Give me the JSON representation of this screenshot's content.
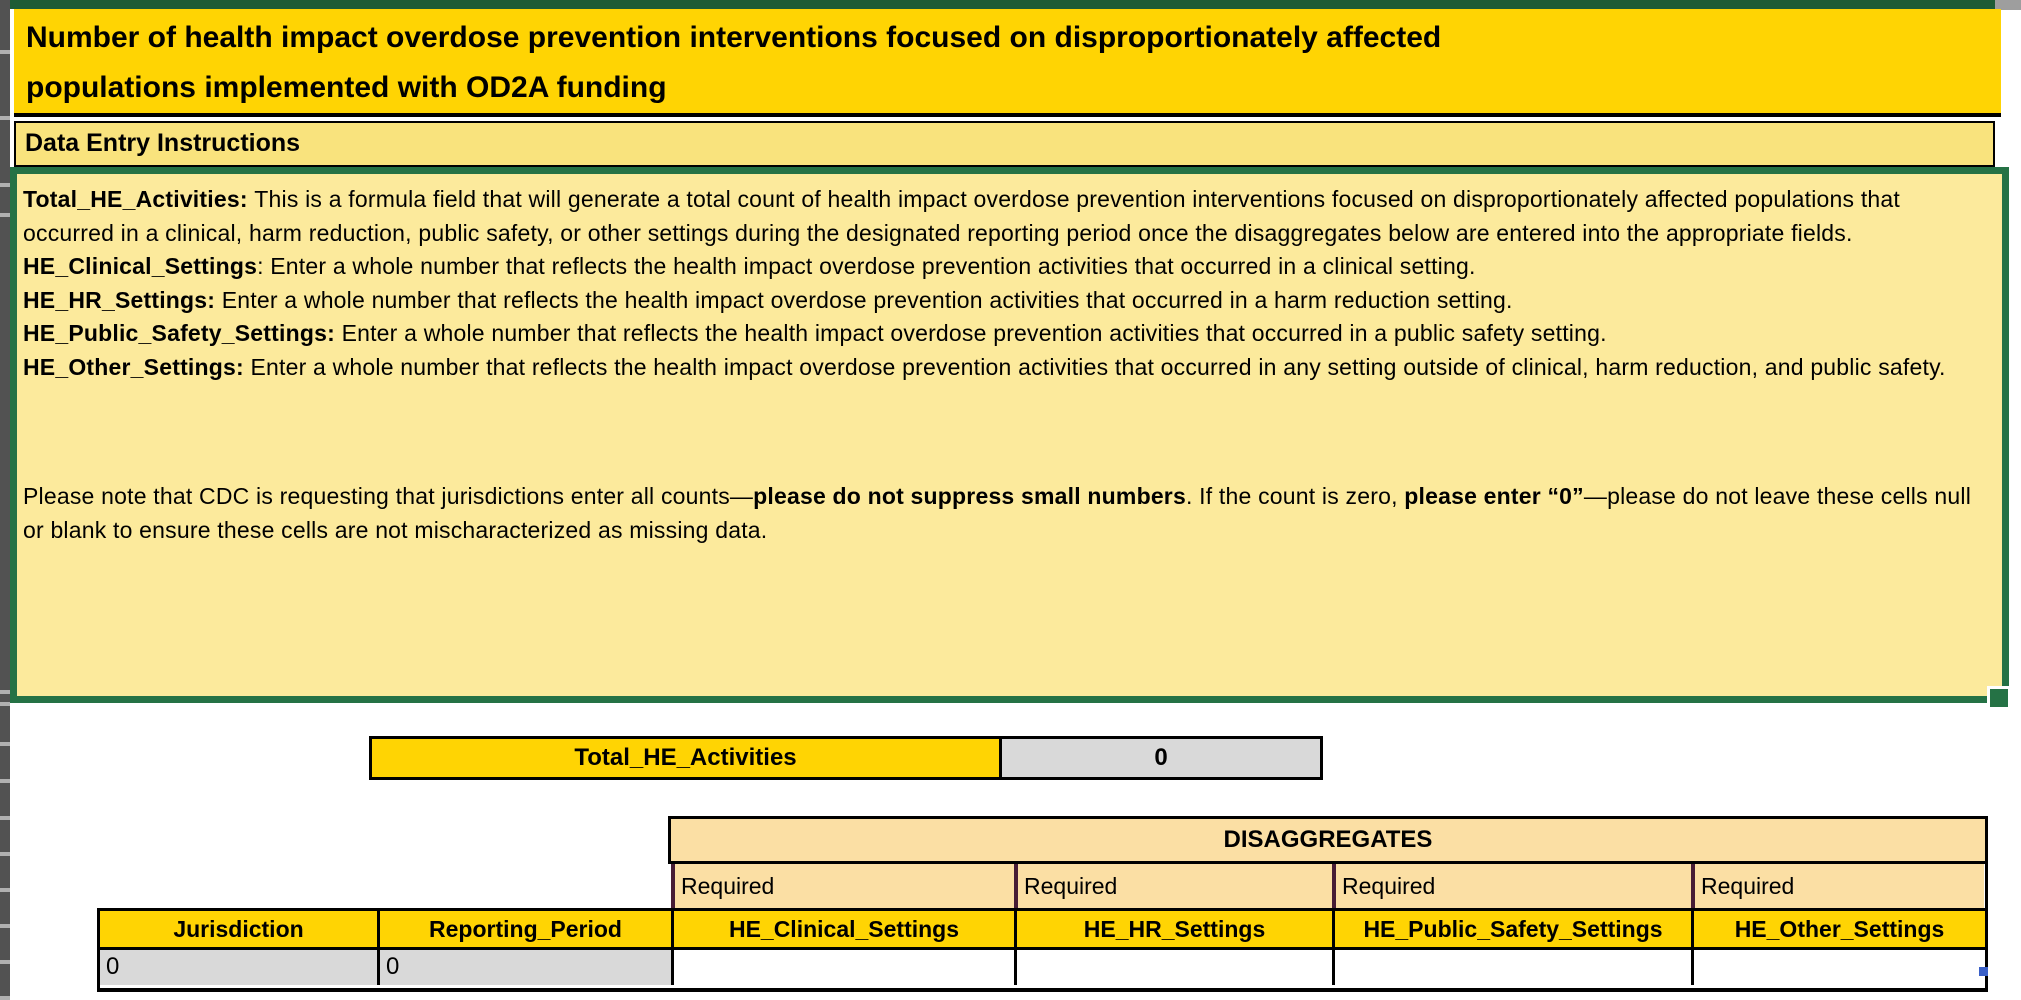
{
  "title": {
    "line1": "Number of health impact overdose prevention interventions focused on disproportionately affected",
    "line2": "populations implemented with OD2A funding"
  },
  "instructions_header": "Data Entry Instructions",
  "instructions": {
    "paragraphs": [
      {
        "segments": [
          {
            "t": "Total_HE_Activities: ",
            "b": true
          },
          {
            "t": "This is a formula field that will generate a total count of health impact overdose prevention interventions focused on disproportionately affected populations that occurred in a clinical, harm reduction, public safety, or other settings during the designated reporting period once the disaggregates below are entered into the appropriate fields.",
            "b": false
          }
        ]
      },
      {
        "segments": [
          {
            "t": "HE_Clinical_Settings",
            "b": true
          },
          {
            "t": ": Enter a whole number that reflects the health impact overdose prevention activities that occurred in a clinical setting.",
            "b": false
          }
        ]
      },
      {
        "segments": [
          {
            "t": "HE_HR_Settings: ",
            "b": true
          },
          {
            "t": "Enter a whole number that reflects the health impact overdose prevention activities that occurred in a harm reduction setting.",
            "b": false
          }
        ]
      },
      {
        "segments": [
          {
            "t": "HE_Public_Safety_Settings: ",
            "b": true
          },
          {
            "t": "Enter a whole number that reflects the health impact overdose prevention activities that occurred in a public safety setting.",
            "b": false
          }
        ]
      },
      {
        "segments": [
          {
            "t": "HE_Other_Settings: ",
            "b": true
          },
          {
            "t": "Enter a whole number that reflects the health impact overdose prevention activities that occurred in any setting outside of clinical, harm reduction, and public safety.",
            "b": false
          }
        ]
      },
      {
        "spacer": true
      },
      {
        "segments": [
          {
            "t": "Please note that CDC is requesting that jurisdictions enter all counts—",
            "b": false
          },
          {
            "t": "please do not suppress small numbers",
            "b": true
          },
          {
            "t": ". If the count is zero, ",
            "b": false
          },
          {
            "t": "please enter “0”",
            "b": true
          },
          {
            "t": "—please do not leave these cells null or blank to ensure these cells are not mischaracterized as missing data.",
            "b": false
          }
        ]
      }
    ]
  },
  "total_row": {
    "label": "Total_HE_Activities",
    "value": "0"
  },
  "table": {
    "group_header": "DISAGGREGATES",
    "required": [
      "Required",
      "Required",
      "Required",
      "Required"
    ],
    "columns": [
      "Jurisdiction",
      "Reporting_Period",
      "HE_Clinical_Settings",
      "HE_HR_Settings",
      "HE_Public_Safety_Settings",
      "HE_Other_Settings"
    ],
    "row": {
      "jurisdiction": "0",
      "reporting_period": "0",
      "he_clinical": "",
      "he_hr": "",
      "he_public_safety": "",
      "he_other": ""
    }
  },
  "colors": {
    "gold": "#FFD403",
    "pale_yellow_body": "#FCEA9C",
    "instructions_header_fill": "#F9E37D",
    "tan_required": "#FBDFA4",
    "gray_cell": "#D9D9D9",
    "selection_green": "#257245",
    "required_divider_maroon": "#471C35",
    "corner_flag_blue": "#3A60C8"
  }
}
